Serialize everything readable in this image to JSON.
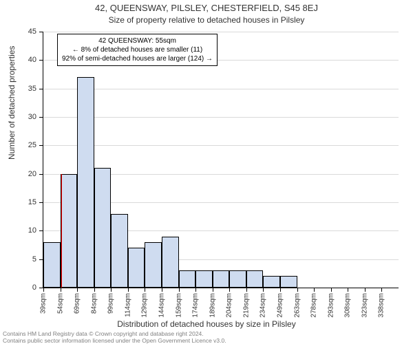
{
  "titles": {
    "main": "42, QUEENSWAY, PILSLEY, CHESTERFIELD, S45 8EJ",
    "sub": "Size of property relative to detached houses in Pilsley"
  },
  "axes": {
    "y_label": "Number of detached properties",
    "x_label": "Distribution of detached houses by size in Pilsley",
    "y_min": 0,
    "y_max": 45,
    "y_tick_step": 5,
    "y_ticks": [
      0,
      5,
      10,
      15,
      20,
      25,
      30,
      35,
      40,
      45
    ],
    "x_ticks": [
      "39sqm",
      "54sqm",
      "69sqm",
      "84sqm",
      "99sqm",
      "114sqm",
      "129sqm",
      "144sqm",
      "159sqm",
      "174sqm",
      "189sqm",
      "204sqm",
      "219sqm",
      "234sqm",
      "249sqm",
      "263sqm",
      "278sqm",
      "293sqm",
      "308sqm",
      "323sqm",
      "338sqm"
    ]
  },
  "chart": {
    "type": "histogram",
    "bar_color": "#cfdcf0",
    "bar_border": "#000000",
    "grid_color": "#d9d9d9",
    "background": "#ffffff",
    "values": [
      8,
      20,
      37,
      21,
      13,
      7,
      8,
      9,
      3,
      3,
      3,
      3,
      3,
      2,
      2,
      0,
      0,
      0,
      0,
      0,
      0
    ],
    "marker": {
      "position_value": 55,
      "x_min": 39,
      "x_max": 354,
      "color": "#ff0000"
    }
  },
  "annotation": {
    "line1": "42 QUEENSWAY: 55sqm",
    "line2": "← 8% of detached houses are smaller (11)",
    "line3": "92% of semi-detached houses are larger (124) →",
    "border": "#000000",
    "background": "#ffffff",
    "fontsize": 10
  },
  "footer": {
    "line1": "Contains HM Land Registry data © Crown copyright and database right 2024.",
    "line2": "Contains public sector information licensed under the Open Government Licence v3.0.",
    "color": "#808080"
  }
}
